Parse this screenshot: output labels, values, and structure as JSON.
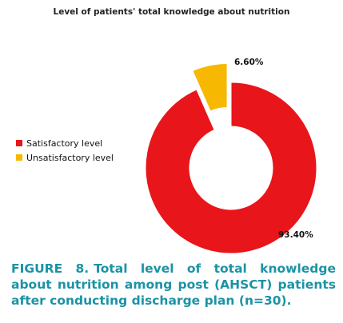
{
  "chart_data": {
    "type": "pie",
    "variant": "donut",
    "title": "Level of patients' total knowledge about nutrition",
    "labels": [
      "Satisfactory level",
      "Unsatisfactory level"
    ],
    "values": [
      93.4,
      6.6
    ],
    "data_labels": [
      "93.40%",
      "6.60%"
    ],
    "colors": [
      "#e8151b",
      "#f6b800"
    ],
    "exploded": [
      "Unsatisfactory level"
    ],
    "legend_position": "left"
  },
  "caption": {
    "label": "FIGURE 8.",
    "text": "Total level of total knowledge about nutrition among post (AHSCT) patients after conducting discharge plan (n=30)."
  }
}
